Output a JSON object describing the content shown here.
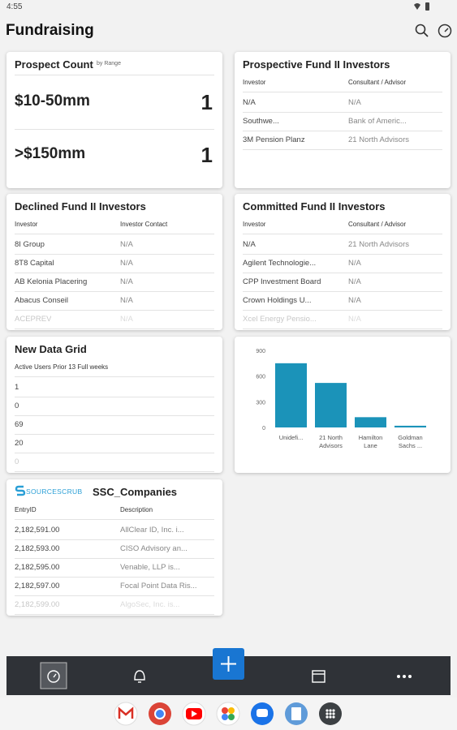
{
  "status_bar": {
    "time": "4:55"
  },
  "header": {
    "title": "Fundraising"
  },
  "prospect_count": {
    "title": "Prospect Count",
    "subtitle": "by Range",
    "rows": [
      {
        "label": "$10-50mm",
        "count": 1
      },
      {
        "label": ">$150mm",
        "count": 1
      }
    ]
  },
  "prospective_investors": {
    "title": "Prospective Fund II Investors",
    "columns": [
      "Investor",
      "Consultant / Advisor"
    ],
    "rows": [
      [
        "N/A",
        "N/A"
      ],
      [
        "Southwe...",
        "Bank of Americ..."
      ],
      [
        "3M Pension Planz",
        "21 North Advisors"
      ]
    ]
  },
  "declined_investors": {
    "title": "Declined Fund II Investors",
    "columns": [
      "Investor",
      "Investor Contact"
    ],
    "rows": [
      [
        "8I Group",
        "N/A"
      ],
      [
        "8T8 Capital",
        "N/A"
      ],
      [
        "AB Kelonia Placering",
        "N/A"
      ],
      [
        "Abacus Conseil",
        "N/A"
      ],
      [
        "ACEPREV",
        "N/A"
      ]
    ]
  },
  "committed_investors": {
    "title": "Committed Fund II Investors",
    "columns": [
      "Investor",
      "Consultant / Advisor"
    ],
    "rows": [
      [
        "N/A",
        "21 North Advisors"
      ],
      [
        "Agilent Technologie...",
        "N/A"
      ],
      [
        "CPP Investment Board",
        "N/A"
      ],
      [
        "Crown Holdings U...",
        "N/A"
      ],
      [
        "Xcel Energy Pensio...",
        "N/A"
      ]
    ]
  },
  "new_data_grid": {
    "title": "New Data Grid",
    "columns": [
      "Active Users Prior 13 Full weeks"
    ],
    "rows": [
      [
        1
      ],
      [
        0
      ],
      [
        69
      ],
      [
        20
      ],
      [
        0
      ]
    ]
  },
  "chart_data": {
    "type": "bar",
    "categories": [
      "Unidefi...",
      "21 North Advisors",
      "Hamilton Lane",
      "Goldman Sachs ..."
    ],
    "values": [
      750,
      520,
      120,
      20
    ],
    "color": "#1b93b9",
    "ylim": [
      0,
      900
    ],
    "yticks": [
      0,
      300,
      600,
      900
    ]
  },
  "ssc_companies": {
    "logo": "SOURCESCRUB",
    "title": "SSC_Companies",
    "columns": [
      "EntryID",
      "Description"
    ],
    "rows": [
      [
        "2,182,591.00",
        "AllClear ID, Inc. i..."
      ],
      [
        "2,182,593.00",
        "CISO Advisory an..."
      ],
      [
        "2,182,595.00",
        "Venable, LLP is..."
      ],
      [
        "2,182,597.00",
        "Focal Point Data Ris..."
      ],
      [
        "2,182,599.00",
        "AlgoSec, Inc. is..."
      ]
    ]
  }
}
